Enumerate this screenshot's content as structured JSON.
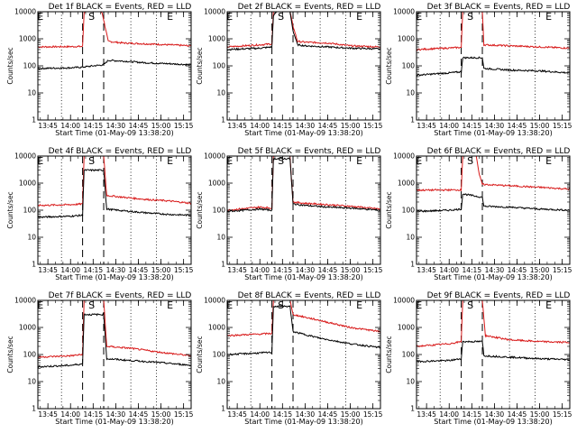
{
  "figure": {
    "background": "#ffffff",
    "colors": {
      "events": "#000000",
      "lld": "#d81a1a"
    }
  },
  "chart_data": [
    {
      "type": "line",
      "title": "Det 1f BLACK = Events, RED = LLD",
      "xlabel": "Start Time (01-May-09 13:38:20)",
      "ylabel": "Counts/sec",
      "yscale": "log",
      "ylim": [
        1,
        10000
      ],
      "xlim": [
        "13:38:20",
        "15:20"
      ],
      "xticks": [
        "13:45",
        "14:00",
        "14:15",
        "14:30",
        "14:45",
        "15:00",
        "15:15"
      ],
      "yticks": [
        "1",
        "10",
        "100",
        "1000",
        "10000"
      ],
      "markers": [
        {
          "label": "E",
          "time": "13:40"
        },
        {
          "label": "S",
          "time": "14:14"
        },
        {
          "label": "E",
          "time": "15:06"
        }
      ],
      "dashed_lines": [
        "14:08",
        "14:22"
      ],
      "dotted_lines": [
        "13:54",
        "14:40",
        "14:57"
      ],
      "series": [
        {
          "color": "#d81a1a",
          "x": [
            "13:38:20",
            "14:08",
            "14:08:30",
            "14:09",
            "14:10",
            "14:20",
            "14:21",
            "14:22",
            "14:25",
            "14:35",
            "14:50",
            "15:05",
            "15:20"
          ],
          "values": [
            500,
            520,
            2000,
            9000,
            10000,
            10000,
            9000,
            5000,
            800,
            700,
            650,
            600,
            550
          ]
        },
        {
          "color": "#000000",
          "x": [
            "13:38:20",
            "14:00",
            "14:08",
            "14:22",
            "14:25",
            "14:35",
            "14:50",
            "15:05",
            "15:20"
          ],
          "values": [
            80,
            85,
            90,
            110,
            160,
            150,
            130,
            120,
            110
          ]
        }
      ]
    },
    {
      "type": "line",
      "title": "Det 2f BLACK = Events, RED = LLD",
      "xlabel": "Start Time (01-May-09 13:38:20)",
      "ylabel": "Counts/sec",
      "yscale": "log",
      "ylim": [
        1,
        10000
      ],
      "xlim": [
        "13:38:20",
        "15:20"
      ],
      "xticks": [
        "13:45",
        "14:00",
        "14:15",
        "14:30",
        "14:45",
        "15:00",
        "15:15"
      ],
      "yticks": [
        "1",
        "10",
        "100",
        "1000",
        "10000"
      ],
      "markers": [
        {
          "label": "E",
          "time": "13:40"
        },
        {
          "label": "S",
          "time": "14:14"
        },
        {
          "label": "E",
          "time": "15:06"
        }
      ],
      "dashed_lines": [
        "14:08",
        "14:22"
      ],
      "dotted_lines": [
        "13:54",
        "14:40",
        "14:57"
      ],
      "series": [
        {
          "color": "#d81a1a",
          "x": [
            "13:38:20",
            "14:00",
            "14:08",
            "14:09",
            "14:11",
            "14:20",
            "14:22",
            "14:25",
            "14:30",
            "14:45",
            "15:00",
            "15:20"
          ],
          "values": [
            500,
            600,
            650,
            10000,
            10000,
            10000,
            3000,
            800,
            750,
            700,
            550,
            500
          ]
        },
        {
          "color": "#000000",
          "x": [
            "13:38:20",
            "14:00",
            "14:08",
            "14:09",
            "14:11",
            "14:20",
            "14:22",
            "14:25",
            "14:30",
            "14:45",
            "15:00",
            "15:20"
          ],
          "values": [
            400,
            450,
            500,
            7000,
            10000,
            10000,
            2000,
            600,
            550,
            500,
            450,
            420
          ]
        }
      ]
    },
    {
      "type": "line",
      "title": "Det 3f BLACK = Events, RED = LLD",
      "xlabel": "Start Time (01-May-09 13:38:20)",
      "ylabel": "Counts/sec",
      "yscale": "log",
      "ylim": [
        1,
        10000
      ],
      "xlim": [
        "13:38:20",
        "15:20"
      ],
      "xticks": [
        "13:45",
        "14:00",
        "14:15",
        "14:30",
        "14:45",
        "15:00",
        "15:15"
      ],
      "yticks": [
        "1",
        "10",
        "100",
        "1000",
        "10000"
      ],
      "markers": [
        {
          "label": "E",
          "time": "13:40"
        },
        {
          "label": "S",
          "time": "14:14"
        },
        {
          "label": "E",
          "time": "15:06"
        }
      ],
      "dashed_lines": [
        "14:08",
        "14:22"
      ],
      "dotted_lines": [
        "13:54",
        "14:40",
        "14:57"
      ],
      "series": [
        {
          "color": "#d81a1a",
          "x": [
            "13:38:20",
            "14:08",
            "14:09",
            "14:22",
            "14:23",
            "14:40",
            "15:00",
            "15:20"
          ],
          "values": [
            400,
            480,
            10000,
            10000,
            600,
            550,
            500,
            450
          ]
        },
        {
          "color": "#000000",
          "x": [
            "13:38:20",
            "14:00",
            "14:08",
            "14:09",
            "14:22",
            "14:23",
            "14:40",
            "15:00",
            "15:20"
          ],
          "values": [
            45,
            55,
            60,
            200,
            200,
            80,
            70,
            65,
            55
          ]
        }
      ]
    },
    {
      "type": "line",
      "title": "Det 4f BLACK = Events, RED = LLD",
      "xlabel": "Start Time (01-May-09 13:38:20)",
      "ylabel": "Counts/sec",
      "yscale": "log",
      "ylim": [
        1,
        10000
      ],
      "xlim": [
        "13:38:20",
        "15:20"
      ],
      "xticks": [
        "13:45",
        "14:00",
        "14:15",
        "14:30",
        "14:45",
        "15:00",
        "15:15"
      ],
      "yticks": [
        "1",
        "10",
        "100",
        "1000",
        "10000"
      ],
      "markers": [
        {
          "label": "E",
          "time": "13:40"
        },
        {
          "label": "S",
          "time": "14:14"
        },
        {
          "label": "E",
          "time": "15:06"
        }
      ],
      "dashed_lines": [
        "14:08",
        "14:22"
      ],
      "dotted_lines": [
        "13:54",
        "14:40",
        "14:57"
      ],
      "series": [
        {
          "color": "#d81a1a",
          "x": [
            "13:38:20",
            "14:00",
            "14:08",
            "14:09",
            "14:22",
            "14:24",
            "14:35",
            "14:50",
            "15:05",
            "15:20"
          ],
          "values": [
            150,
            160,
            170,
            10000,
            10000,
            350,
            300,
            250,
            220,
            180
          ]
        },
        {
          "color": "#000000",
          "x": [
            "13:38:20",
            "14:00",
            "14:08",
            "14:09",
            "14:22",
            "14:24",
            "14:35",
            "14:50",
            "15:05",
            "15:20"
          ],
          "values": [
            55,
            60,
            65,
            3000,
            3000,
            110,
            95,
            80,
            70,
            65
          ]
        }
      ]
    },
    {
      "type": "line",
      "title": "Det 5f BLACK = Events, RED = LLD",
      "xlabel": "Start Time (01-May-09 13:38:20)",
      "ylabel": "Counts/sec",
      "yscale": "log",
      "ylim": [
        1,
        10000
      ],
      "xlim": [
        "13:38:20",
        "15:20"
      ],
      "xticks": [
        "13:45",
        "14:00",
        "14:15",
        "14:30",
        "14:45",
        "15:00",
        "15:15"
      ],
      "yticks": [
        "1",
        "10",
        "100",
        "1000",
        "10000"
      ],
      "markers": [
        {
          "label": "E",
          "time": "13:40"
        },
        {
          "label": "S",
          "time": "14:14"
        },
        {
          "label": "E",
          "time": "15:06"
        }
      ],
      "dashed_lines": [
        "14:08",
        "14:22"
      ],
      "dotted_lines": [
        "13:54",
        "14:40",
        "14:57"
      ],
      "series": [
        {
          "color": "#d81a1a",
          "x": [
            "13:38:20",
            "14:00",
            "14:08",
            "14:09",
            "14:20",
            "14:22",
            "14:30",
            "14:45",
            "15:00",
            "15:20"
          ],
          "values": [
            100,
            130,
            120,
            10000,
            10000,
            200,
            180,
            160,
            140,
            110
          ]
        },
        {
          "color": "#000000",
          "x": [
            "13:38:20",
            "14:00",
            "14:08",
            "14:09",
            "14:20",
            "14:22",
            "14:30",
            "14:45",
            "15:00",
            "15:20"
          ],
          "values": [
            90,
            110,
            100,
            8000,
            8000,
            170,
            150,
            130,
            120,
            100
          ]
        }
      ]
    },
    {
      "type": "line",
      "title": "Det 6f BLACK = Events, RED = LLD",
      "xlabel": "Start Time (01-May-09 13:38:20)",
      "ylabel": "Counts/sec",
      "yscale": "log",
      "ylim": [
        1,
        10000
      ],
      "xlim": [
        "13:38:20",
        "15:20"
      ],
      "xticks": [
        "13:45",
        "14:00",
        "14:15",
        "14:30",
        "14:45",
        "15:00",
        "15:15"
      ],
      "yticks": [
        "1",
        "10",
        "100",
        "1000",
        "10000"
      ],
      "markers": [
        {
          "label": "E",
          "time": "13:40"
        },
        {
          "label": "S",
          "time": "14:14"
        },
        {
          "label": "E",
          "time": "15:06"
        }
      ],
      "dashed_lines": [
        "14:08",
        "14:22"
      ],
      "dotted_lines": [
        "13:54",
        "14:40",
        "14:57"
      ],
      "series": [
        {
          "color": "#d81a1a",
          "x": [
            "13:38:20",
            "14:08",
            "14:09",
            "14:18",
            "14:20",
            "14:22",
            "14:40",
            "15:00",
            "15:20"
          ],
          "values": [
            550,
            560,
            10000,
            10000,
            2000,
            900,
            800,
            700,
            600
          ]
        },
        {
          "color": "#000000",
          "x": [
            "13:38:20",
            "14:00",
            "14:08",
            "14:09",
            "14:22",
            "14:23",
            "14:40",
            "15:00",
            "15:20"
          ],
          "values": [
            90,
            100,
            110,
            400,
            300,
            140,
            130,
            110,
            100
          ]
        }
      ]
    },
    {
      "type": "line",
      "title": "Det 7f BLACK = Events, RED = LLD",
      "xlabel": "Start Time (01-May-09 13:38:20)",
      "ylabel": "Counts/sec",
      "yscale": "log",
      "ylim": [
        1,
        10000
      ],
      "xlim": [
        "13:38:20",
        "15:20"
      ],
      "xticks": [
        "13:45",
        "14:00",
        "14:15",
        "14:30",
        "14:45",
        "15:00",
        "15:15"
      ],
      "yticks": [
        "1",
        "10",
        "100",
        "1000",
        "10000"
      ],
      "markers": [
        {
          "label": "E",
          "time": "13:40"
        },
        {
          "label": "S",
          "time": "14:14"
        },
        {
          "label": "E",
          "time": "15:06"
        }
      ],
      "dashed_lines": [
        "14:08",
        "14:22"
      ],
      "dotted_lines": [
        "13:54",
        "14:40",
        "14:57"
      ],
      "series": [
        {
          "color": "#d81a1a",
          "x": [
            "13:38:20",
            "14:00",
            "14:08",
            "14:09",
            "14:22",
            "14:24",
            "14:40",
            "15:00",
            "15:20"
          ],
          "values": [
            80,
            90,
            100,
            10000,
            10000,
            200,
            170,
            120,
            90
          ]
        },
        {
          "color": "#000000",
          "x": [
            "13:38:20",
            "14:00",
            "14:08",
            "14:09",
            "14:22",
            "14:24",
            "14:40",
            "15:00",
            "15:20"
          ],
          "values": [
            35,
            40,
            45,
            3000,
            3000,
            70,
            60,
            50,
            40
          ]
        }
      ]
    },
    {
      "type": "line",
      "title": "Det 8f BLACK = Events, RED = LLD",
      "xlabel": "Start Time (01-May-09 13:38:20)",
      "ylabel": "Counts/sec",
      "yscale": "log",
      "ylim": [
        1,
        10000
      ],
      "xlim": [
        "13:38:20",
        "15:20"
      ],
      "xticks": [
        "13:45",
        "14:00",
        "14:15",
        "14:30",
        "14:45",
        "15:00",
        "15:15"
      ],
      "yticks": [
        "1",
        "10",
        "100",
        "1000",
        "10000"
      ],
      "markers": [
        {
          "label": "E",
          "time": "13:40"
        },
        {
          "label": "S",
          "time": "14:14"
        },
        {
          "label": "E",
          "time": "15:06"
        }
      ],
      "dashed_lines": [
        "14:08",
        "14:22"
      ],
      "dotted_lines": [
        "13:54",
        "14:40",
        "14:57"
      ],
      "series": [
        {
          "color": "#d81a1a",
          "x": [
            "13:38:20",
            "14:08",
            "14:09",
            "14:20",
            "14:22",
            "14:40",
            "15:00",
            "15:20"
          ],
          "values": [
            500,
            600,
            10000,
            10000,
            3000,
            1800,
            1000,
            700
          ]
        },
        {
          "color": "#000000",
          "x": [
            "13:38:20",
            "14:08",
            "14:09",
            "14:20",
            "14:22",
            "14:40",
            "15:00",
            "15:20"
          ],
          "values": [
            100,
            120,
            6000,
            6000,
            700,
            400,
            250,
            180
          ]
        }
      ]
    },
    {
      "type": "line",
      "title": "Det 9f BLACK = Events, RED = LLD",
      "xlabel": "Start Time (01-May-09 13:38:20)",
      "ylabel": "Counts/sec",
      "yscale": "log",
      "ylim": [
        1,
        10000
      ],
      "xlim": [
        "13:38:20",
        "15:20"
      ],
      "xticks": [
        "13:45",
        "14:00",
        "14:15",
        "14:30",
        "14:45",
        "15:00",
        "15:15"
      ],
      "yticks": [
        "1",
        "10",
        "100",
        "1000",
        "10000"
      ],
      "markers": [
        {
          "label": "E",
          "time": "13:40"
        },
        {
          "label": "S",
          "time": "14:14"
        },
        {
          "label": "E",
          "time": "15:06"
        }
      ],
      "dashed_lines": [
        "14:08",
        "14:22"
      ],
      "dotted_lines": [
        "13:54",
        "14:40",
        "14:57"
      ],
      "series": [
        {
          "color": "#d81a1a",
          "x": [
            "13:38:20",
            "14:00",
            "14:08",
            "14:09",
            "14:22",
            "14:24",
            "14:40",
            "15:00",
            "15:20"
          ],
          "values": [
            200,
            250,
            300,
            10000,
            10000,
            500,
            350,
            300,
            280
          ]
        },
        {
          "color": "#000000",
          "x": [
            "13:38:20",
            "14:00",
            "14:08",
            "14:09",
            "14:22",
            "14:23",
            "14:40",
            "15:00",
            "15:20"
          ],
          "values": [
            55,
            60,
            70,
            300,
            300,
            90,
            80,
            70,
            65
          ]
        }
      ]
    }
  ]
}
